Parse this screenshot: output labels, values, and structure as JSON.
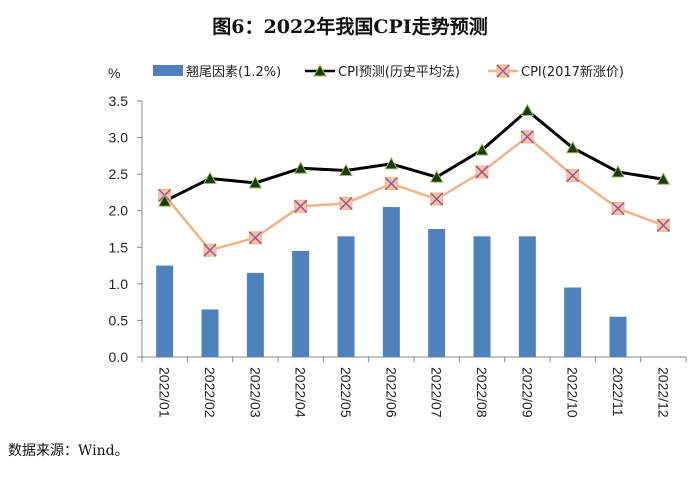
{
  "chart_data": {
    "type": "bar+line",
    "title": "图6：2022年我国CPI走势预测",
    "ylabel": "%",
    "xlabel": "",
    "ylim": [
      0,
      3.5
    ],
    "yticks": [
      "0.0",
      "0.5",
      "1.0",
      "1.5",
      "2.0",
      "2.5",
      "3.0",
      "3.5"
    ],
    "ytick_values": [
      0,
      0.5,
      1.0,
      1.5,
      2.0,
      2.5,
      3.0,
      3.5
    ],
    "grid": false,
    "legend_position": "top",
    "categories": [
      "2022/01",
      "2022/02",
      "2022/03",
      "2022/04",
      "2022/05",
      "2022/06",
      "2022/07",
      "2022/08",
      "2022/09",
      "2022/10",
      "2022/11",
      "2022/12"
    ],
    "series": [
      {
        "name": "翘尾因素(1.2%)",
        "type": "bar",
        "color": "#4f81bd",
        "values": [
          1.25,
          0.65,
          1.15,
          1.45,
          1.65,
          2.05,
          1.75,
          1.65,
          1.65,
          0.95,
          0.55,
          null
        ]
      },
      {
        "name": "CPI预测(历史平均法)",
        "type": "line",
        "color": "#000000",
        "marker": "triangle",
        "marker_color": "#1d3a0f",
        "values": [
          2.13,
          2.44,
          2.38,
          2.58,
          2.55,
          2.64,
          2.46,
          2.83,
          3.37,
          2.86,
          2.53,
          2.43
        ]
      },
      {
        "name": "CPI(2017新涨价)",
        "type": "line",
        "color": "#f4b183",
        "marker": "x-square",
        "marker_color": "#8e5aa0",
        "values": [
          2.21,
          1.46,
          1.63,
          2.06,
          2.1,
          2.37,
          2.16,
          2.53,
          3.01,
          2.48,
          2.03,
          1.8
        ]
      }
    ]
  },
  "footer": {
    "source": "数据来源：Wind。"
  }
}
